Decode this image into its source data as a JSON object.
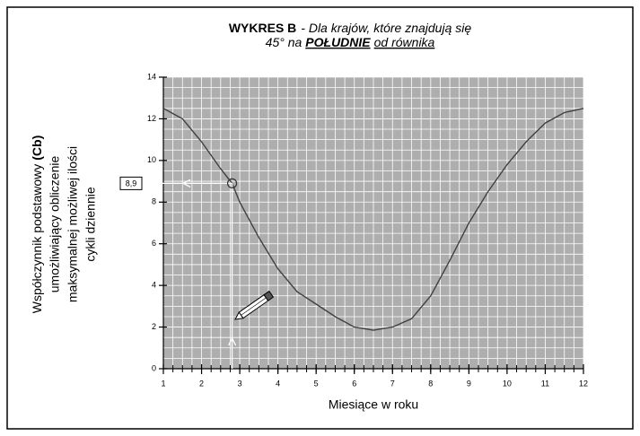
{
  "chart_data": {
    "type": "line",
    "title": {
      "part1": "WYKRES B",
      "part2": "- Dla krajów, które znajdują się",
      "part3": "45° na",
      "part4": "POŁUDNIE",
      "part5": "od równika"
    },
    "y_label": {
      "line1": "Współczynnik podstawowy",
      "line1_bold": "(Cb)",
      "line2": "umożliwiający obliczenie",
      "line3": "maksymalnej możliwej ilości",
      "line4": "cykli dziennie"
    },
    "x_label": "Miesiące w roku",
    "x": [
      1,
      1.5,
      2,
      2.5,
      2.8,
      3,
      3.5,
      4,
      4.5,
      5,
      5.5,
      6,
      6.5,
      7,
      7.5,
      8,
      8.5,
      9,
      9.5,
      10,
      10.5,
      11,
      11.5,
      12
    ],
    "values": [
      12.5,
      12.0,
      10.9,
      9.6,
      8.9,
      8.0,
      6.3,
      4.8,
      3.7,
      3.1,
      2.5,
      2.0,
      1.85,
      2.0,
      2.4,
      3.5,
      5.2,
      7.0,
      8.5,
      9.8,
      10.9,
      11.8,
      12.3,
      12.5
    ],
    "color": "#404040",
    "xlim": [
      1,
      12
    ],
    "ylim": [
      0,
      14
    ],
    "xticks": [
      1,
      2,
      3,
      4,
      5,
      6,
      7,
      8,
      9,
      10,
      11,
      12
    ],
    "yticks": [
      0,
      2,
      4,
      6,
      8,
      10,
      12,
      14
    ],
    "xminor": 0.25,
    "yminor": 0.5,
    "grid": true,
    "annotation": {
      "x": 2.8,
      "value": 8.9,
      "value_label": "8,9"
    }
  }
}
